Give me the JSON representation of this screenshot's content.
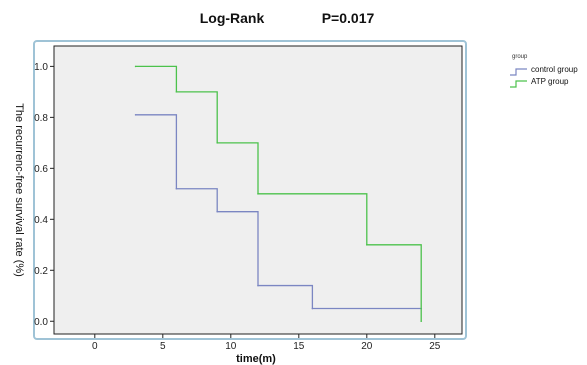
{
  "chart_data": {
    "type": "line",
    "step": true,
    "title_left": "Log-Rank",
    "title_right": "P=0.017",
    "xlabel": "time(m)",
    "ylabel": "The recurrenc-free survival rate (%)",
    "xlim": [
      -3,
      27
    ],
    "ylim": [
      -0.05,
      1.08
    ],
    "xticks": [
      0,
      5,
      10,
      15,
      20,
      25
    ],
    "yticks": [
      0.0,
      0.2,
      0.4,
      0.6,
      0.8,
      1.0
    ],
    "xtick_labels": [
      "0",
      "5",
      "10",
      "15",
      "20",
      "25"
    ],
    "ytick_labels": [
      "0.0",
      "0.2",
      "0.4",
      "0.6",
      "0.8",
      "1.0"
    ],
    "legend": {
      "title": "group",
      "placement": "outside-right-top"
    },
    "series": [
      {
        "name": "control group",
        "color": "#7b86c2",
        "x": [
          3,
          6,
          9,
          12,
          16,
          24
        ],
        "y": [
          0.81,
          0.52,
          0.43,
          0.14,
          0.05,
          0.05
        ]
      },
      {
        "name": "ATP group",
        "color": "#4cc24c",
        "x": [
          3,
          6,
          9,
          12,
          20,
          24
        ],
        "y": [
          1.0,
          0.9,
          0.7,
          0.5,
          0.3,
          0.0
        ]
      }
    ],
    "background_color": "#efefef",
    "frame_color": "#9fc3d6",
    "grid": false
  }
}
